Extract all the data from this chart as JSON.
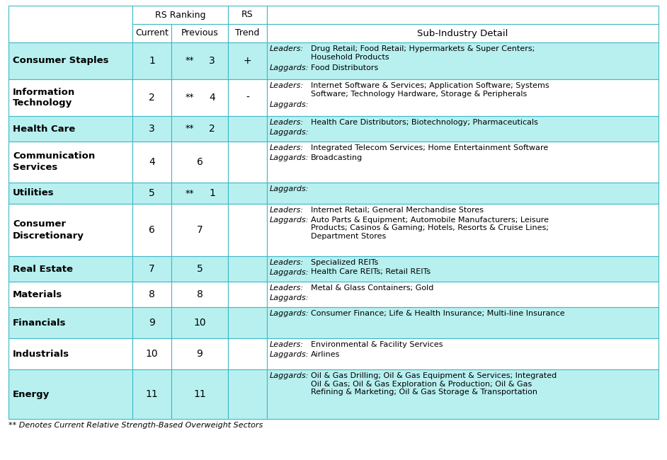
{
  "footnote": "** Denotes Current Relative Strength-Based Overweight Sectors",
  "cell_bg_light": "#B8F0F0",
  "cell_bg_white": "#FFFFFF",
  "border_color": "#40B8C8",
  "rows": [
    {
      "sector": "Consumer Staples",
      "current": "1",
      "double_star": "**",
      "previous": "3",
      "trend": "+",
      "leaders": "Drug Retail; Food Retail; Hypermarkets & Super Centers;\nHousehold Products",
      "laggards": "Food Distributors",
      "bg": "#B8F0F0",
      "rh": 52
    },
    {
      "sector": "Information\nTechnology",
      "current": "2",
      "double_star": "**",
      "previous": "4",
      "trend": "-",
      "leaders": "Internet Software & Services; Application Software; Systems\nSoftware; Technology Hardware, Storage & Peripherals",
      "laggards": "",
      "bg": "#FFFFFF",
      "rh": 52
    },
    {
      "sector": "Health Care",
      "current": "3",
      "double_star": "**",
      "previous": "2",
      "trend": "",
      "leaders": "Health Care Distributors; Biotechnology; Pharmaceuticals",
      "laggards": "",
      "bg": "#B8F0F0",
      "rh": 36
    },
    {
      "sector": "Communication\nServices",
      "current": "4",
      "double_star": "",
      "previous": "6",
      "trend": "",
      "leaders": "Integrated Telecom Services; Home Entertainment Software",
      "laggards": "Broadcasting",
      "bg": "#FFFFFF",
      "rh": 58
    },
    {
      "sector": "Utilities",
      "current": "5",
      "double_star": "**",
      "previous": "1",
      "trend": "",
      "leaders": "",
      "laggards": "",
      "bg": "#B8F0F0",
      "rh": 30
    },
    {
      "sector": "Consumer\nDiscretionary",
      "current": "6",
      "double_star": "",
      "previous": "7",
      "trend": "",
      "leaders": "Internet Retail; General Merchandise Stores",
      "laggards": "Auto Parts & Equipment; Automobile Manufacturers; Leisure\nProducts; Casinos & Gaming; Hotels, Resorts & Cruise Lines;\nDepartment Stores",
      "bg": "#FFFFFF",
      "rh": 74
    },
    {
      "sector": "Real Estate",
      "current": "7",
      "double_star": "",
      "previous": "5",
      "trend": "",
      "leaders": "Specialized REITs",
      "laggards": "Health Care REITs; Retail REITs",
      "bg": "#B8F0F0",
      "rh": 36
    },
    {
      "sector": "Materials",
      "current": "8",
      "double_star": "",
      "previous": "8",
      "trend": "",
      "leaders": "Metal & Glass Containers; Gold",
      "laggards": "",
      "bg": "#FFFFFF",
      "rh": 36
    },
    {
      "sector": "Financials",
      "current": "9",
      "double_star": "",
      "previous": "10",
      "trend": "",
      "leaders": "",
      "laggards": "Consumer Finance; Life & Health Insurance; Multi-line Insurance",
      "bg": "#B8F0F0",
      "rh": 44
    },
    {
      "sector": "Industrials",
      "current": "10",
      "double_star": "",
      "previous": "9",
      "trend": "",
      "leaders": "Environmental & Facility Services",
      "laggards": "Airlines",
      "bg": "#FFFFFF",
      "rh": 44
    },
    {
      "sector": "Energy",
      "current": "11",
      "double_star": "",
      "previous": "11",
      "trend": "",
      "leaders": "",
      "laggards": "Oil & Gas Drilling; Oil & Gas Equipment & Services; Integrated\nOil & Gas; Oil & Gas Exploration & Production; Oil & Gas\nRefining & Marketing; Oil & Gas Storage & Transportation",
      "bg": "#B8F0F0",
      "rh": 70
    }
  ]
}
